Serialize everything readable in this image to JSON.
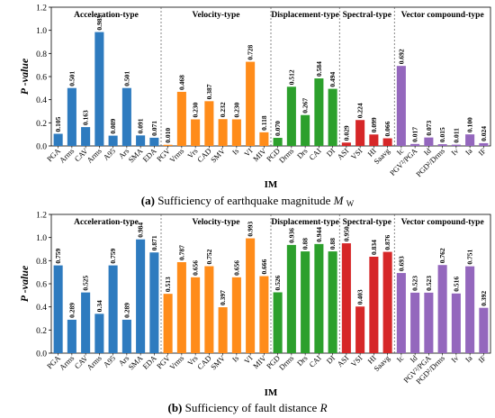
{
  "figure": {
    "captions": [
      {
        "label": "(a)",
        "text": "Sufficiency of earthquake magnitude ",
        "var": "M",
        "sub": "W"
      },
      {
        "label": "(b)",
        "text": "Sufficiency of fault distance ",
        "var": "R",
        "sub": ""
      }
    ]
  },
  "chart_data": [
    {
      "type": "bar",
      "ylabel": "P -value",
      "xlabel": "IM",
      "ylim": [
        0,
        1.2
      ],
      "yticks": [
        "0.0",
        "0.2",
        "0.4",
        "0.6",
        "0.8",
        "1.0",
        "1.2"
      ],
      "categories": [
        "PGA",
        "Arms",
        "CAV",
        "Arms",
        "A95",
        "Ars",
        "SMA",
        "EDA",
        "PGV",
        "Vrms",
        "Vrs",
        "CAD",
        "SMV",
        "Is",
        "VI",
        "MIV",
        "PGD",
        "Drms",
        "Drs",
        "CAI",
        "DI",
        "ASI",
        "VSI",
        "HI",
        "Saavg",
        "Ic",
        "PGV²/PGA",
        "Id",
        "PGD²/Drms",
        "Iv",
        "Ia",
        "IF"
      ],
      "values": [
        0.105,
        0.501,
        0.163,
        0.985,
        0.089,
        0.501,
        0.091,
        0.071,
        0.01,
        0.468,
        0.23,
        0.387,
        0.232,
        0.23,
        0.728,
        0.118,
        0.07,
        0.512,
        0.267,
        0.584,
        0.494,
        0.029,
        0.224,
        0.099,
        0.066,
        0.692,
        0.017,
        0.073,
        0.015,
        0.011,
        0.1,
        0.024
      ],
      "value_labels": [
        "0.105",
        "0.501",
        "0.163",
        "0.985",
        "0.089",
        "0.501",
        "0.091",
        "0.071",
        "0.010",
        "0.468",
        "0.230",
        "0.387",
        "0.232",
        "0.230",
        "0.728",
        "0.118",
        "0.070",
        "0.512",
        "0.267",
        "0.584",
        "0.494",
        "0.029",
        "0.224",
        "0.099",
        "0.066",
        "0.692",
        "0.017",
        "0.073",
        "0.015",
        "0.011",
        "0.100",
        "0.024"
      ],
      "groups": [
        {
          "name": "Acceleration-type",
          "start": 0,
          "count": 8,
          "color": "#2e7bbf"
        },
        {
          "name": "Velocity-type",
          "start": 8,
          "count": 8,
          "color": "#ff8c1a"
        },
        {
          "name": "Displacement-type",
          "start": 16,
          "count": 5,
          "color": "#2ca02c"
        },
        {
          "name": "Spectral-type",
          "start": 21,
          "count": 4,
          "color": "#d62728"
        },
        {
          "name": "Vector compound-type",
          "start": 25,
          "count": 7,
          "color": "#9467bd"
        }
      ]
    },
    {
      "type": "bar",
      "ylabel": "P -value",
      "xlabel": "IM",
      "ylim": [
        0,
        1.2
      ],
      "yticks": [
        "0.0",
        "0.2",
        "0.4",
        "0.6",
        "0.8",
        "1.0",
        "1.2"
      ],
      "categories": [
        "PGA",
        "Arms",
        "CAV",
        "Arms",
        "A95",
        "Ars",
        "SMA",
        "EDA",
        "PGV",
        "Vrms",
        "Vrs",
        "CAD",
        "SMV",
        "Is",
        "VI",
        "MIV",
        "PGD",
        "Drms",
        "Drs",
        "CAI",
        "DI",
        "ASI",
        "VSI",
        "HI",
        "Saavg",
        "Ic",
        "Id",
        "PGV²/PGA",
        "PGD²/Drms",
        "Iv",
        "Ia",
        "IF"
      ],
      "values": [
        0.759,
        0.289,
        0.525,
        0.34,
        0.759,
        0.289,
        0.984,
        0.871,
        0.513,
        0.787,
        0.656,
        0.752,
        0.397,
        0.656,
        0.993,
        0.666,
        0.526,
        0.936,
        0.88,
        0.944,
        0.88,
        0.95,
        0.403,
        0.834,
        0.876,
        0.693,
        0.523,
        0.523,
        0.762,
        0.516,
        0.751,
        0.392
      ],
      "value_labels": [
        "0.759",
        "0.289",
        "0.525",
        "0.34",
        "0.759",
        "0.289",
        "0.984",
        "0.871",
        "0.513",
        "0.787",
        "0.656",
        "0.752",
        "0.397",
        "0.656",
        "0.993",
        "0.666",
        "0.526",
        "0.936",
        "0.88",
        "0.944",
        "0.88",
        "0.950",
        "0.403",
        "0.834",
        "0.876",
        "0.693",
        "0.523",
        "0.523",
        "0.762",
        "0.516",
        "0.751",
        "0.392"
      ],
      "groups": [
        {
          "name": "Acceleration-type",
          "start": 0,
          "count": 8,
          "color": "#2e7bbf"
        },
        {
          "name": "Velocity-type",
          "start": 8,
          "count": 8,
          "color": "#ff8c1a"
        },
        {
          "name": "Displacement-type",
          "start": 16,
          "count": 5,
          "color": "#2ca02c"
        },
        {
          "name": "Spectral-type",
          "start": 21,
          "count": 4,
          "color": "#d62728"
        },
        {
          "name": "Vector compound-type",
          "start": 25,
          "count": 7,
          "color": "#9467bd"
        }
      ]
    }
  ]
}
